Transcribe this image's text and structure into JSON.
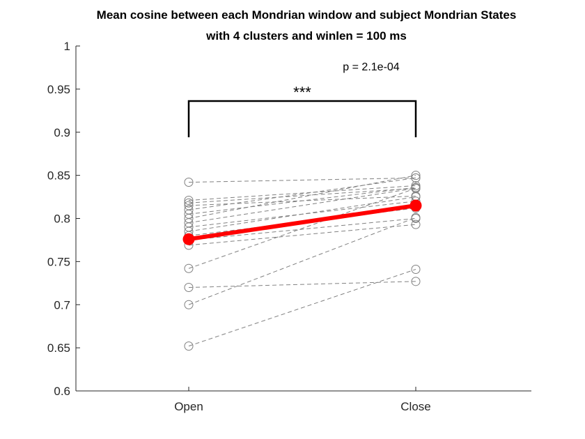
{
  "chart_data": {
    "type": "line",
    "title": "Mean cosine between each Mondrian window and subject Mondrian States",
    "subtitle": "with 4 clusters and winlen = 100 ms",
    "xlabel": "",
    "ylabel": "",
    "categories": [
      "Open",
      "Close"
    ],
    "ylim": [
      0.6,
      1
    ],
    "yticks": [
      "0.6",
      "0.65",
      "0.7",
      "0.75",
      "0.8",
      "0.85",
      "0.9",
      "0.95",
      "1"
    ],
    "subjects": [
      [
        0.842,
        0.847
      ],
      [
        0.821,
        0.838
      ],
      [
        0.818,
        0.835
      ],
      [
        0.815,
        0.826
      ],
      [
        0.81,
        0.847
      ],
      [
        0.805,
        0.836
      ],
      [
        0.8,
        0.85
      ],
      [
        0.795,
        0.835
      ],
      [
        0.79,
        0.82
      ],
      [
        0.785,
        0.825
      ],
      [
        0.78,
        0.812
      ],
      [
        0.775,
        0.8
      ],
      [
        0.769,
        0.793
      ],
      [
        0.742,
        0.835
      ],
      [
        0.72,
        0.727
      ],
      [
        0.7,
        0.801
      ],
      [
        0.652,
        0.741
      ]
    ],
    "mean": [
      0.776,
      0.815
    ],
    "significance": {
      "stars": "***",
      "p_text": "p = 2.1e-04"
    },
    "colors": {
      "mean": "#ff0000",
      "subject": "#808080",
      "axis": "#262626"
    }
  }
}
